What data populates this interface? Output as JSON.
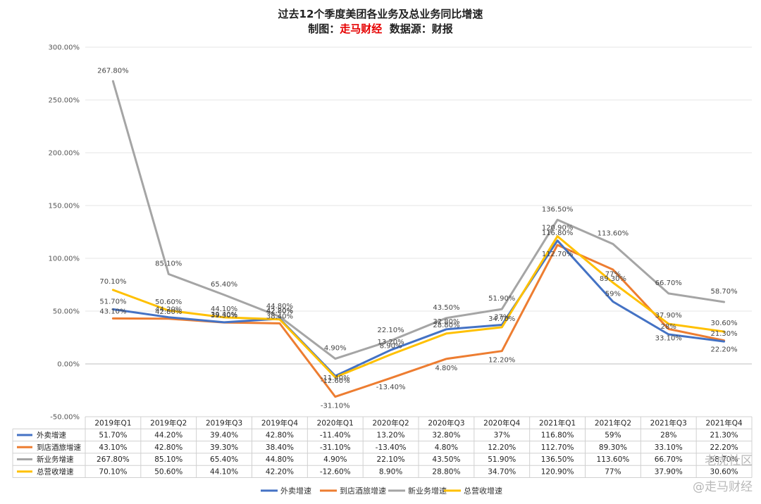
{
  "title_line1": "过去12个季度美团各业务及总业务同比增速",
  "title_prefix": "制图：",
  "title_accent": "走马财经",
  "title_suffix": "  数据源：财报",
  "watermarks": [
    "老虎社区",
    "@走马财经"
  ],
  "chart_data": {
    "type": "line",
    "categories": [
      "2019年Q1",
      "2019年Q2",
      "2019年Q3",
      "2019年Q4",
      "2020年Q1",
      "2020年Q2",
      "2020年Q3",
      "2020年Q4",
      "2021年Q1",
      "2021年Q2",
      "2021年Q3",
      "2021年Q4"
    ],
    "ylim": [
      -50,
      300
    ],
    "yticks": [
      "-50.00%",
      "0.00%",
      "50.00%",
      "100.00%",
      "150.00%",
      "200.00%",
      "250.00%",
      "300.00%"
    ],
    "grid": true,
    "legend_position": "bottom",
    "series": [
      {
        "name": "外卖增速",
        "color": "#4472c4",
        "values": [
          51.7,
          44.2,
          39.4,
          42.8,
          -11.4,
          13.2,
          32.8,
          37,
          116.8,
          59,
          28,
          21.3
        ],
        "labels": [
          "51.70%",
          "44.20%",
          "39.40%",
          "42.80%",
          "-11.40%",
          "13.20%",
          "32.80%",
          "37%",
          "116.80%",
          "59%",
          "28%",
          "21.30%"
        ]
      },
      {
        "name": "到店酒旅增速",
        "color": "#ed7d31",
        "values": [
          43.1,
          42.8,
          39.3,
          38.4,
          -31.1,
          -13.4,
          4.8,
          12.2,
          112.7,
          89.3,
          33.1,
          22.2
        ],
        "labels": [
          "43.10%",
          "42.80%",
          "39.30%",
          "38.40%",
          "-31.10%",
          "-13.40%",
          "4.80%",
          "12.20%",
          "112.70%",
          "89.30%",
          "33.10%",
          "22.20%"
        ]
      },
      {
        "name": "新业务增速",
        "color": "#a5a5a5",
        "values": [
          267.8,
          85.1,
          65.4,
          44.8,
          4.9,
          22.1,
          43.5,
          51.9,
          136.5,
          113.6,
          66.7,
          58.7
        ],
        "labels": [
          "267.80%",
          "85.10%",
          "65.40%",
          "44.80%",
          "4.90%",
          "22.10%",
          "43.50%",
          "51.90%",
          "136.50%",
          "113.60%",
          "66.70%",
          "58.70%"
        ]
      },
      {
        "name": "总营收增速",
        "color": "#ffc000",
        "values": [
          70.1,
          50.6,
          44.1,
          42.2,
          -12.6,
          8.9,
          28.8,
          34.7,
          120.9,
          77,
          37.9,
          30.6
        ],
        "labels": [
          "70.10%",
          "50.60%",
          "44.10%",
          "42.20%",
          "-12.60%",
          "8.90%",
          "28.80%",
          "34.70%",
          "120.90%",
          "77%",
          "37.90%",
          "30.60%"
        ]
      }
    ]
  }
}
